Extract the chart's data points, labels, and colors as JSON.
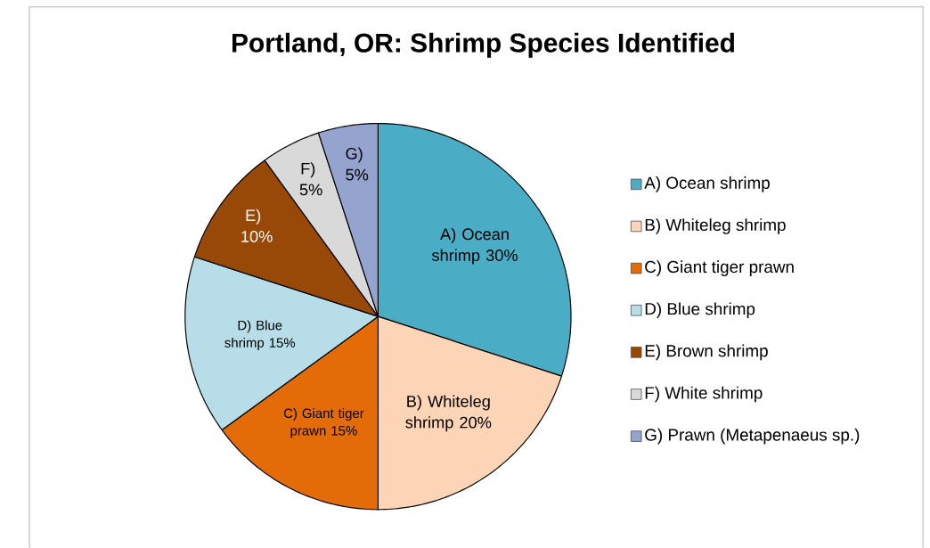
{
  "chart_data": {
    "type": "pie",
    "title": "Portland, OR: Shrimp Species Identified",
    "categories": [
      "A) Ocean shrimp",
      "B) Whiteleg shrimp",
      "C) Giant tiger prawn",
      "D) Blue shrimp",
      "E) Brown shrimp",
      "F) White shrimp",
      "G) Prawn (Metapenaeus sp.)"
    ],
    "values": [
      30,
      20,
      15,
      15,
      10,
      5,
      5
    ],
    "value_labels": [
      "A) Ocean shrimp 30%",
      "B) Whiteleg shrimp 20%",
      "C) Giant tiger prawn 15%",
      "D) Blue shrimp 15%",
      "E) 10%",
      "F) 5%",
      "G) 5%"
    ],
    "colors": [
      "#4bacc6",
      "#fbd5b5",
      "#e36c09",
      "#b7dde8",
      "#984807",
      "#d9d9d9",
      "#95a3cf"
    ],
    "legend": "right"
  }
}
